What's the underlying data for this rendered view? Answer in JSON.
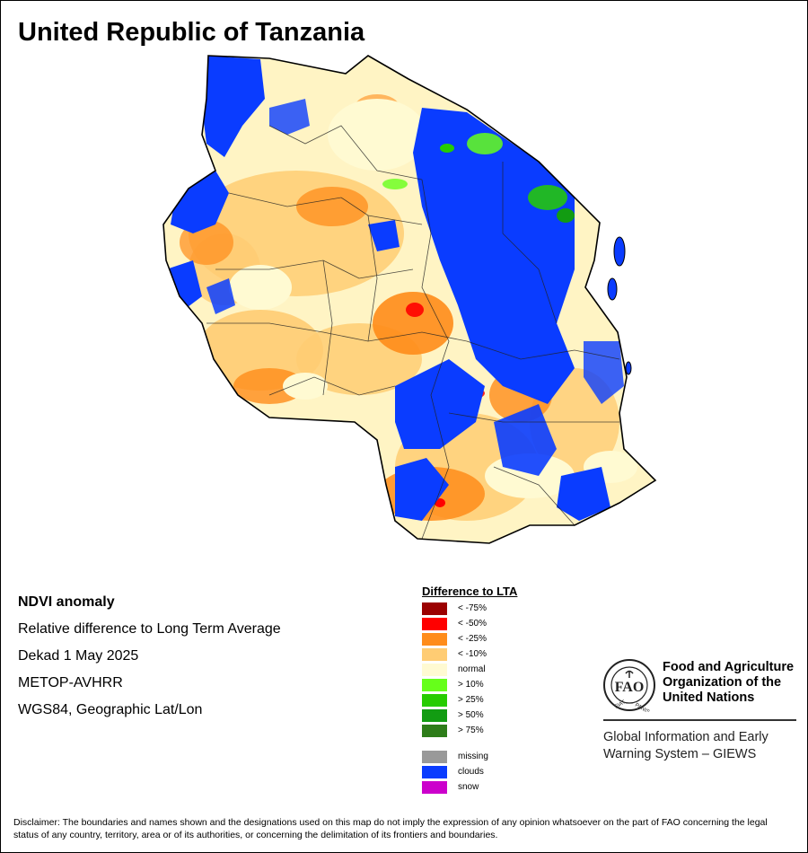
{
  "title": "United Republic of Tanzania",
  "info": {
    "line1": "NDVI anomaly",
    "line2": "Relative difference to Long Term Average",
    "line3": "Dekad 1 May 2025",
    "line4": "METOP-AVHRR",
    "line5": "WGS84, Geographic Lat/Lon"
  },
  "legend": {
    "title": "Difference to LTA",
    "classes": [
      {
        "label": "< -75%",
        "color": "#9b0000"
      },
      {
        "label": "< -50%",
        "color": "#ff0000"
      },
      {
        "label": "< -25%",
        "color": "#ff8c1a"
      },
      {
        "label": "< -10%",
        "color": "#ffcc73"
      },
      {
        "label": "normal",
        "color": "#fffad2"
      },
      {
        "label": "> 10%",
        "color": "#66ff1a"
      },
      {
        "label": "> 25%",
        "color": "#26cc00"
      },
      {
        "label": "> 50%",
        "color": "#129c12"
      },
      {
        "label": "> 75%",
        "color": "#2e7d1a"
      }
    ],
    "other": [
      {
        "label": "missing",
        "color": "#999999"
      },
      {
        "label": "clouds",
        "color": "#0a3cff"
      },
      {
        "label": "snow",
        "color": "#cc00cc"
      }
    ]
  },
  "fao": {
    "name_line1": "Food and Agriculture",
    "name_line2": "Organization of the",
    "name_line3": "United Nations",
    "logo_text": "FAO",
    "motto_left": "FIAT",
    "motto_right": "PANIS",
    "giews_line1": "Global Information and Early",
    "giews_line2": "Warning System – GIEWS"
  },
  "disclaimer": "Disclaimer: The boundaries and names shown and the designations used on this map do not imply the expression of any opinion whatsoever on the part of FAO concerning the legal status of any country, territory, area or of its authorities, or concerning the delimitation of its frontiers and boundaries."
}
